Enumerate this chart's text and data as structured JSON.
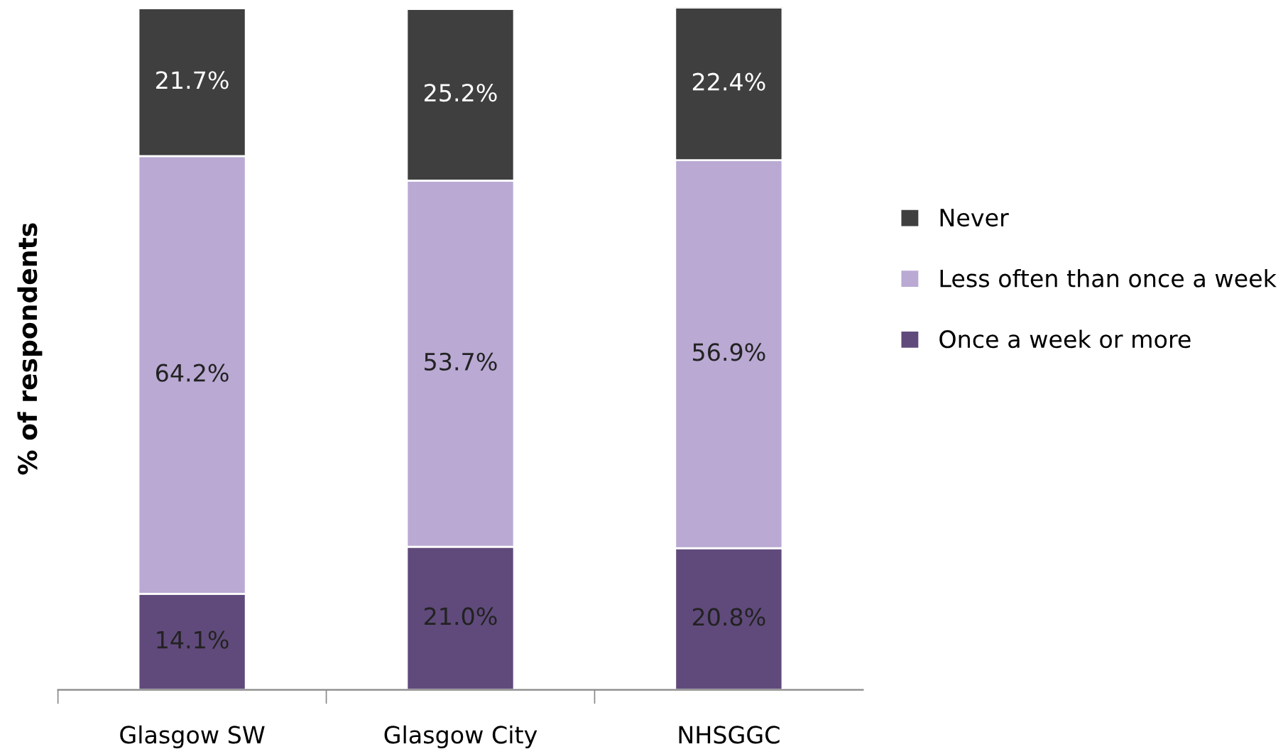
{
  "chart_data": {
    "type": "bar",
    "stacked": true,
    "ylabel": "% of respondents",
    "categories": [
      "Glasgow SW",
      "Glasgow City",
      "NHSGGC"
    ],
    "series": [
      {
        "name": "Once a week or more",
        "color": "#604a7b",
        "values": [
          14.1,
          21.0,
          20.8
        ],
        "value_labels": [
          "14.1%",
          "21.0%",
          "20.8%"
        ]
      },
      {
        "name": "Less often than once a week",
        "color": "#b9a9d3",
        "values": [
          64.2,
          53.7,
          56.9
        ],
        "value_labels": [
          "64.2%",
          "53.7%",
          "56.9%"
        ]
      },
      {
        "name": "Never",
        "color": "#3f3f3f",
        "values": [
          21.7,
          25.2,
          22.4
        ],
        "value_labels": [
          "21.7%",
          "25.2%",
          "22.4%"
        ]
      }
    ],
    "tick_labels": "x",
    "legend": "right",
    "grid": false
  }
}
